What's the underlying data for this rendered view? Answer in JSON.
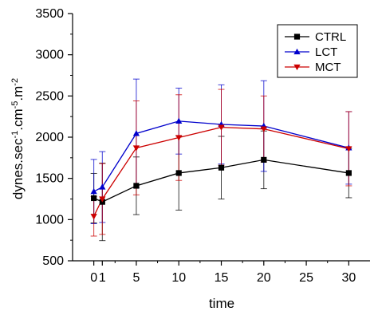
{
  "chart_data": {
    "type": "line",
    "title": "",
    "xlabel": "time",
    "ylabel": "dynes.sec⁻¹.cm⁻⁵.m⁻²",
    "ylabel_parts": [
      "dynes.sec",
      "-1",
      ".cm",
      "-5",
      ".m",
      "-2"
    ],
    "xlim": [
      -2.5,
      32.5
    ],
    "ylim": [
      500,
      3500
    ],
    "x_ticks": [
      0,
      1,
      5,
      10,
      15,
      20,
      25,
      30
    ],
    "x_tick_labels": [
      "0",
      "1",
      "5",
      "10",
      "15",
      "20",
      "25",
      "30"
    ],
    "y_ticks": [
      500,
      1000,
      1500,
      2000,
      2500,
      3000,
      3500
    ],
    "grid": false,
    "legend_position": "top-right",
    "series": [
      {
        "name": "CTRL",
        "color": "#000000",
        "marker": "square",
        "x": [
          0,
          1,
          5,
          10,
          15,
          20,
          30
        ],
        "y": [
          1260,
          1215,
          1410,
          1565,
          1630,
          1725,
          1565
        ],
        "err": [
          300,
          470,
          350,
          450,
          380,
          350,
          300
        ]
      },
      {
        "name": "LCT",
        "color": "#0000cc",
        "marker": "triangle-up",
        "x": [
          0,
          1,
          5,
          10,
          15,
          20,
          30
        ],
        "y": [
          1340,
          1395,
          2045,
          2195,
          2155,
          2135,
          1870
        ],
        "err": [
          390,
          430,
          660,
          400,
          480,
          550,
          440
        ]
      },
      {
        "name": "MCT",
        "color": "#cc0000",
        "marker": "triangle-down",
        "x": [
          0,
          1,
          5,
          10,
          15,
          20,
          30
        ],
        "y": [
          1040,
          1250,
          1870,
          1995,
          2120,
          2100,
          1860
        ],
        "err": [
          240,
          430,
          570,
          520,
          460,
          400,
          450
        ]
      }
    ]
  }
}
